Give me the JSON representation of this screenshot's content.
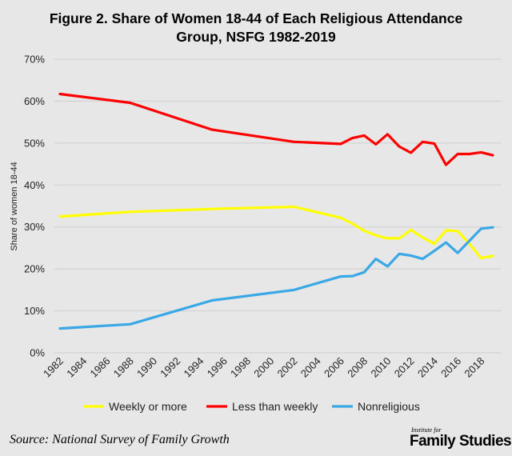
{
  "chart_data": {
    "type": "line",
    "title": "Figure 2. Share of Women 18-44 of Each Religious Attendance Group, NSFG 1982-2019",
    "title_lines": [
      "Figure 2. Share of Women 18-44 of Each Religious Attendance",
      "Group, NSFG 1982-2019"
    ],
    "xlabel": "",
    "ylabel": "Share of women 18-44",
    "ylim": [
      0,
      70
    ],
    "xlim": [
      1982,
      2019
    ],
    "y_ticks": [
      "0%",
      "10%",
      "20%",
      "30%",
      "40%",
      "50%",
      "60%",
      "70%"
    ],
    "x_ticks": [
      "1982",
      "1984",
      "1986",
      "1988",
      "1990",
      "1992",
      "1994",
      "1996",
      "1998",
      "2000",
      "2002",
      "2004",
      "2006",
      "2008",
      "2010",
      "2012",
      "2014",
      "2016",
      "2018"
    ],
    "grid": true,
    "legend_position": "bottom",
    "x": [
      1982,
      1988,
      1995,
      2002,
      2006,
      2007,
      2008,
      2009,
      2010,
      2011,
      2012,
      2013,
      2014,
      2015,
      2016,
      2017,
      2018,
      2019
    ],
    "series": [
      {
        "name": "Weekly or more",
        "color": "#ffff00",
        "values": [
          32.5,
          33.6,
          34.3,
          34.8,
          32.2,
          30.8,
          29.1,
          28.0,
          27.3,
          27.3,
          29.3,
          27.5,
          26.0,
          29.2,
          29.0,
          26.0,
          22.6,
          23.1
        ]
      },
      {
        "name": "Less than weekly",
        "color": "#ff0000",
        "values": [
          61.7,
          59.6,
          53.2,
          50.3,
          49.8,
          51.2,
          51.8,
          49.7,
          52.1,
          49.2,
          47.7,
          50.3,
          49.9,
          44.8,
          47.4,
          47.4,
          47.8,
          47.1
        ]
      },
      {
        "name": "Nonreligious",
        "color": "#3aa8e6",
        "values": [
          5.8,
          6.8,
          12.5,
          15.0,
          18.2,
          18.3,
          19.2,
          22.4,
          20.6,
          23.6,
          23.2,
          22.4,
          24.3,
          26.3,
          23.8,
          26.7,
          29.6,
          29.9
        ]
      }
    ]
  },
  "source": "Source: National Survey of Family Growth",
  "logo": {
    "small": "Institute for",
    "big": "Family Studies"
  }
}
